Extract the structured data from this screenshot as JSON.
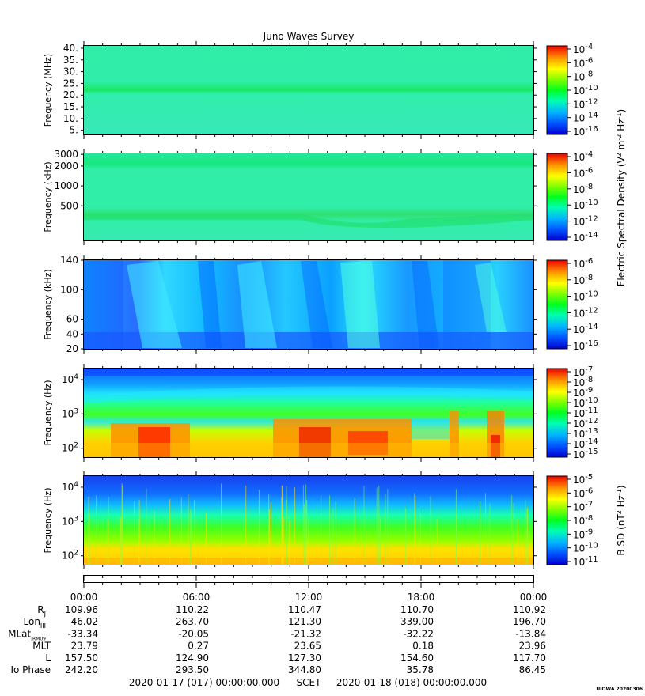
{
  "title": "Juno Waves Survey",
  "colors": {
    "axis": "#000000",
    "text": "#000000"
  },
  "panels": [
    {
      "id": "p1",
      "ylabel": "Frequency (MHz)",
      "yticks": [
        {
          "label": "40.",
          "value": 40
        },
        {
          "label": "35.",
          "value": 35
        },
        {
          "label": "30.",
          "value": 30
        },
        {
          "label": "25.",
          "value": 25
        },
        {
          "label": "20.",
          "value": 20
        },
        {
          "label": "15.",
          "value": 15
        },
        {
          "label": "10.",
          "value": 10
        },
        {
          "label": "5.",
          "value": 5
        }
      ]
    },
    {
      "id": "p2",
      "ylabel": "Frequency (kHz)",
      "yticks": [
        {
          "label": "3000",
          "value": 3000
        },
        {
          "label": "2000",
          "value": 2000
        },
        {
          "label": "1000",
          "value": 1000
        },
        {
          "label": "500",
          "value": 500
        }
      ]
    },
    {
      "id": "p3",
      "ylabel": "Frequency (kHz)",
      "yticks": [
        {
          "label": "140",
          "value": 140
        },
        {
          "label": "100",
          "value": 100
        },
        {
          "label": "60",
          "value": 60
        },
        {
          "label": "40",
          "value": 40
        },
        {
          "label": "20",
          "value": 20
        }
      ]
    },
    {
      "id": "p4",
      "ylabel": "Frequency (Hz)",
      "yticks": [
        {
          "label": "10",
          "exp": "4",
          "value": 10000
        },
        {
          "label": "10",
          "exp": "3",
          "value": 1000
        },
        {
          "label": "10",
          "exp": "2",
          "value": 100
        }
      ]
    },
    {
      "id": "p5",
      "ylabel": "Frequency (Hz)",
      "yticks": [
        {
          "label": "10",
          "exp": "4",
          "value": 10000
        },
        {
          "label": "10",
          "exp": "3",
          "value": 1000
        },
        {
          "label": "10",
          "exp": "2",
          "value": 100
        }
      ]
    }
  ],
  "colorbars": [
    {
      "panel": "p1",
      "labels": [
        "-4",
        "-6",
        "-8",
        "-10",
        "-12",
        "-14",
        "-16"
      ]
    },
    {
      "panel": "p2",
      "labels": [
        "-4",
        "-6",
        "-8",
        "-10",
        "-12",
        "-14"
      ]
    },
    {
      "panel": "p3",
      "labels": [
        "-6",
        "-8",
        "-10",
        "-12",
        "-14",
        "-16"
      ]
    },
    {
      "panel": "p4",
      "labels": [
        "-7",
        "-8",
        "-9",
        "-10",
        "-11",
        "-12",
        "-13",
        "-14",
        "-15"
      ]
    },
    {
      "panel": "p5",
      "labels": [
        "-5",
        "-6",
        "-7",
        "-8",
        "-9",
        "-10",
        "-11"
      ]
    }
  ],
  "colorbar_base": "10",
  "electric_label": {
    "pre": "Electric Spectral Density (V",
    "e1": "2",
    "mid": " m",
    "e2": "-2",
    "mid2": " Hz",
    "e3": "-1",
    "post": ")"
  },
  "magnetic_label": {
    "pre": "B SD (nT",
    "e1": "2",
    "mid": " Hz",
    "e2": "-1",
    "post": ")"
  },
  "time_ticks": [
    "00:00",
    "06:00",
    "12:00",
    "18:00",
    "00:00"
  ],
  "ephemeris": {
    "rows": [
      {
        "label": "R",
        "sub": "J",
        "values": [
          "109.96",
          "110.22",
          "110.47",
          "110.70",
          "110.92"
        ]
      },
      {
        "label": "Lon",
        "sub": "III",
        "values": [
          "46.02",
          "263.70",
          "121.30",
          "339.00",
          "196.70"
        ]
      },
      {
        "label": "MLat",
        "sub": "JRM09",
        "values": [
          "-33.34",
          "-20.05",
          "-21.32",
          "-32.22",
          "-13.84"
        ]
      },
      {
        "label": "MLT",
        "sub": "",
        "values": [
          "23.79",
          "0.27",
          "23.65",
          "0.18",
          "23.96"
        ]
      },
      {
        "label": "L",
        "sub": "",
        "values": [
          "157.50",
          "124.90",
          "127.30",
          "154.60",
          "117.70"
        ]
      },
      {
        "label": "Io Phase",
        "sub": "",
        "values": [
          "242.20",
          "293.50",
          "344.80",
          "35.78",
          "86.45"
        ]
      }
    ]
  },
  "footer": {
    "start": "2020-01-17 (017) 00:00:00.000",
    "scet": "SCET",
    "end": "2020-01-18 (018) 00:00:00.000"
  },
  "stamp": "UIOWA 20200306",
  "chart_data": [
    {
      "type": "heatmap",
      "title": "Juno Waves Survey",
      "ylabel": "Frequency (MHz)",
      "ylim": [
        3,
        41
      ],
      "x": [
        "00:00",
        "06:00",
        "12:00",
        "18:00",
        "00:00"
      ],
      "colorbar_range_log10": [
        -16,
        -4
      ],
      "features": [
        {
          "freq_MHz": 21,
          "log10_intensity": -11
        }
      ],
      "background_log10": -12.5
    },
    {
      "type": "heatmap",
      "ylabel": "Frequency (kHz)",
      "yscale": "log",
      "ylim": [
        150,
        3000
      ],
      "colorbar_range_log10": [
        -14,
        -4
      ],
      "features": [
        {
          "freq_kHz": 320,
          "log10_intensity": -10
        },
        {
          "freq_kHz": 2000,
          "log10_intensity": -11
        }
      ]
    },
    {
      "type": "heatmap",
      "ylabel": "Frequency (kHz)",
      "ylim": [
        20,
        140
      ],
      "colorbar_range_log10": [
        -16,
        -6
      ]
    },
    {
      "type": "heatmap",
      "ylabel": "Frequency (Hz)",
      "yscale": "log",
      "ylim": [
        60,
        20000
      ],
      "colorbar_range_log10": [
        -15,
        -7
      ]
    },
    {
      "type": "heatmap",
      "ylabel": "Frequency (Hz)",
      "yscale": "log",
      "ylim": [
        60,
        20000
      ],
      "colorbar_range_log10": [
        -11,
        -4.5
      ]
    }
  ]
}
